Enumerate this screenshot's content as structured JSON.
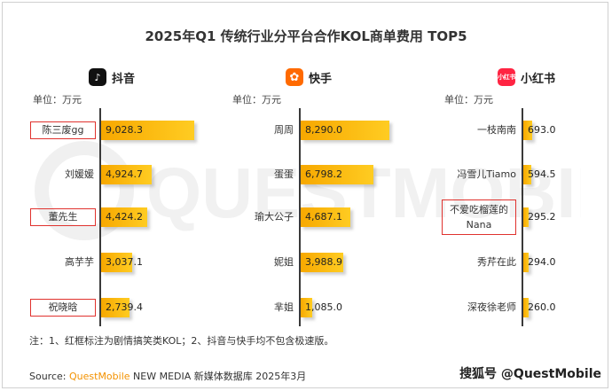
{
  "title": "2025年Q1 传统行业分平台合作KOL商单费用 TOP5",
  "watermark": "QUESTMOBILE",
  "chart_data": [
    {
      "type": "bar",
      "platform": "抖音",
      "unit_label": "单位：万元",
      "categories": [
        "陈三废gg",
        "刘媛媛",
        "董先生",
        "高芋芋",
        "祝晓晗"
      ],
      "values": [
        9028.3,
        4924.7,
        4424.2,
        3037.1,
        2739.4
      ],
      "value_labels": [
        "9,028.3",
        "4,924.7",
        "4,424.2",
        "3,037.1",
        "2,739.4"
      ],
      "boxed": [
        true,
        false,
        true,
        false,
        true
      ],
      "xlim": [
        0,
        9100
      ]
    },
    {
      "type": "bar",
      "platform": "快手",
      "unit_label": "单位：万元",
      "categories": [
        "周周",
        "蛋蛋",
        "瑜大公子",
        "妮姐",
        "芈姐"
      ],
      "values": [
        8290.0,
        6798.2,
        4687.1,
        3988.9,
        1085.0
      ],
      "value_labels": [
        "8,290.0",
        "6,798.2",
        "4,687.1",
        "3,988.9",
        "1,085.0"
      ],
      "boxed": [
        false,
        false,
        false,
        false,
        false
      ],
      "xlim": [
        0,
        8300
      ]
    },
    {
      "type": "bar",
      "platform": "小红书",
      "unit_label": "单位：万元",
      "categories": [
        "一枝南南",
        "冯雪儿Tiamo",
        "不爱吃榴莲的Nana",
        "秀芹在此",
        "深夜徐老师"
      ],
      "values": [
        693.0,
        594.5,
        295.2,
        294.0,
        260.0
      ],
      "value_labels": [
        "693.0",
        "594.5",
        "295.2",
        "294.0",
        "260.0"
      ],
      "boxed": [
        false,
        false,
        true,
        false,
        false
      ],
      "xlim": [
        0,
        6900
      ]
    }
  ],
  "logos": {
    "douyin": "♪",
    "kuaishou": "✿",
    "xiaohongshu": "小红书"
  },
  "note": "注：1、红框标注为剧情搞笑类KOL；2、抖音与快手均不包含极速版。",
  "source_label": "Source:",
  "source_brand": "QuestMobile",
  "source_rest": "NEW MEDIA 新媒体数据库 2025年3月",
  "credit": "搜狐号 @QuestMobile",
  "colors": {
    "bar_start": "#f7a800",
    "bar_end": "#ffcc22",
    "box": "#e0322e",
    "brand": "#f39200",
    "douyin": "#111111",
    "kuaishou": "#ff6a00",
    "xiaohongshu": "#ff2442"
  }
}
